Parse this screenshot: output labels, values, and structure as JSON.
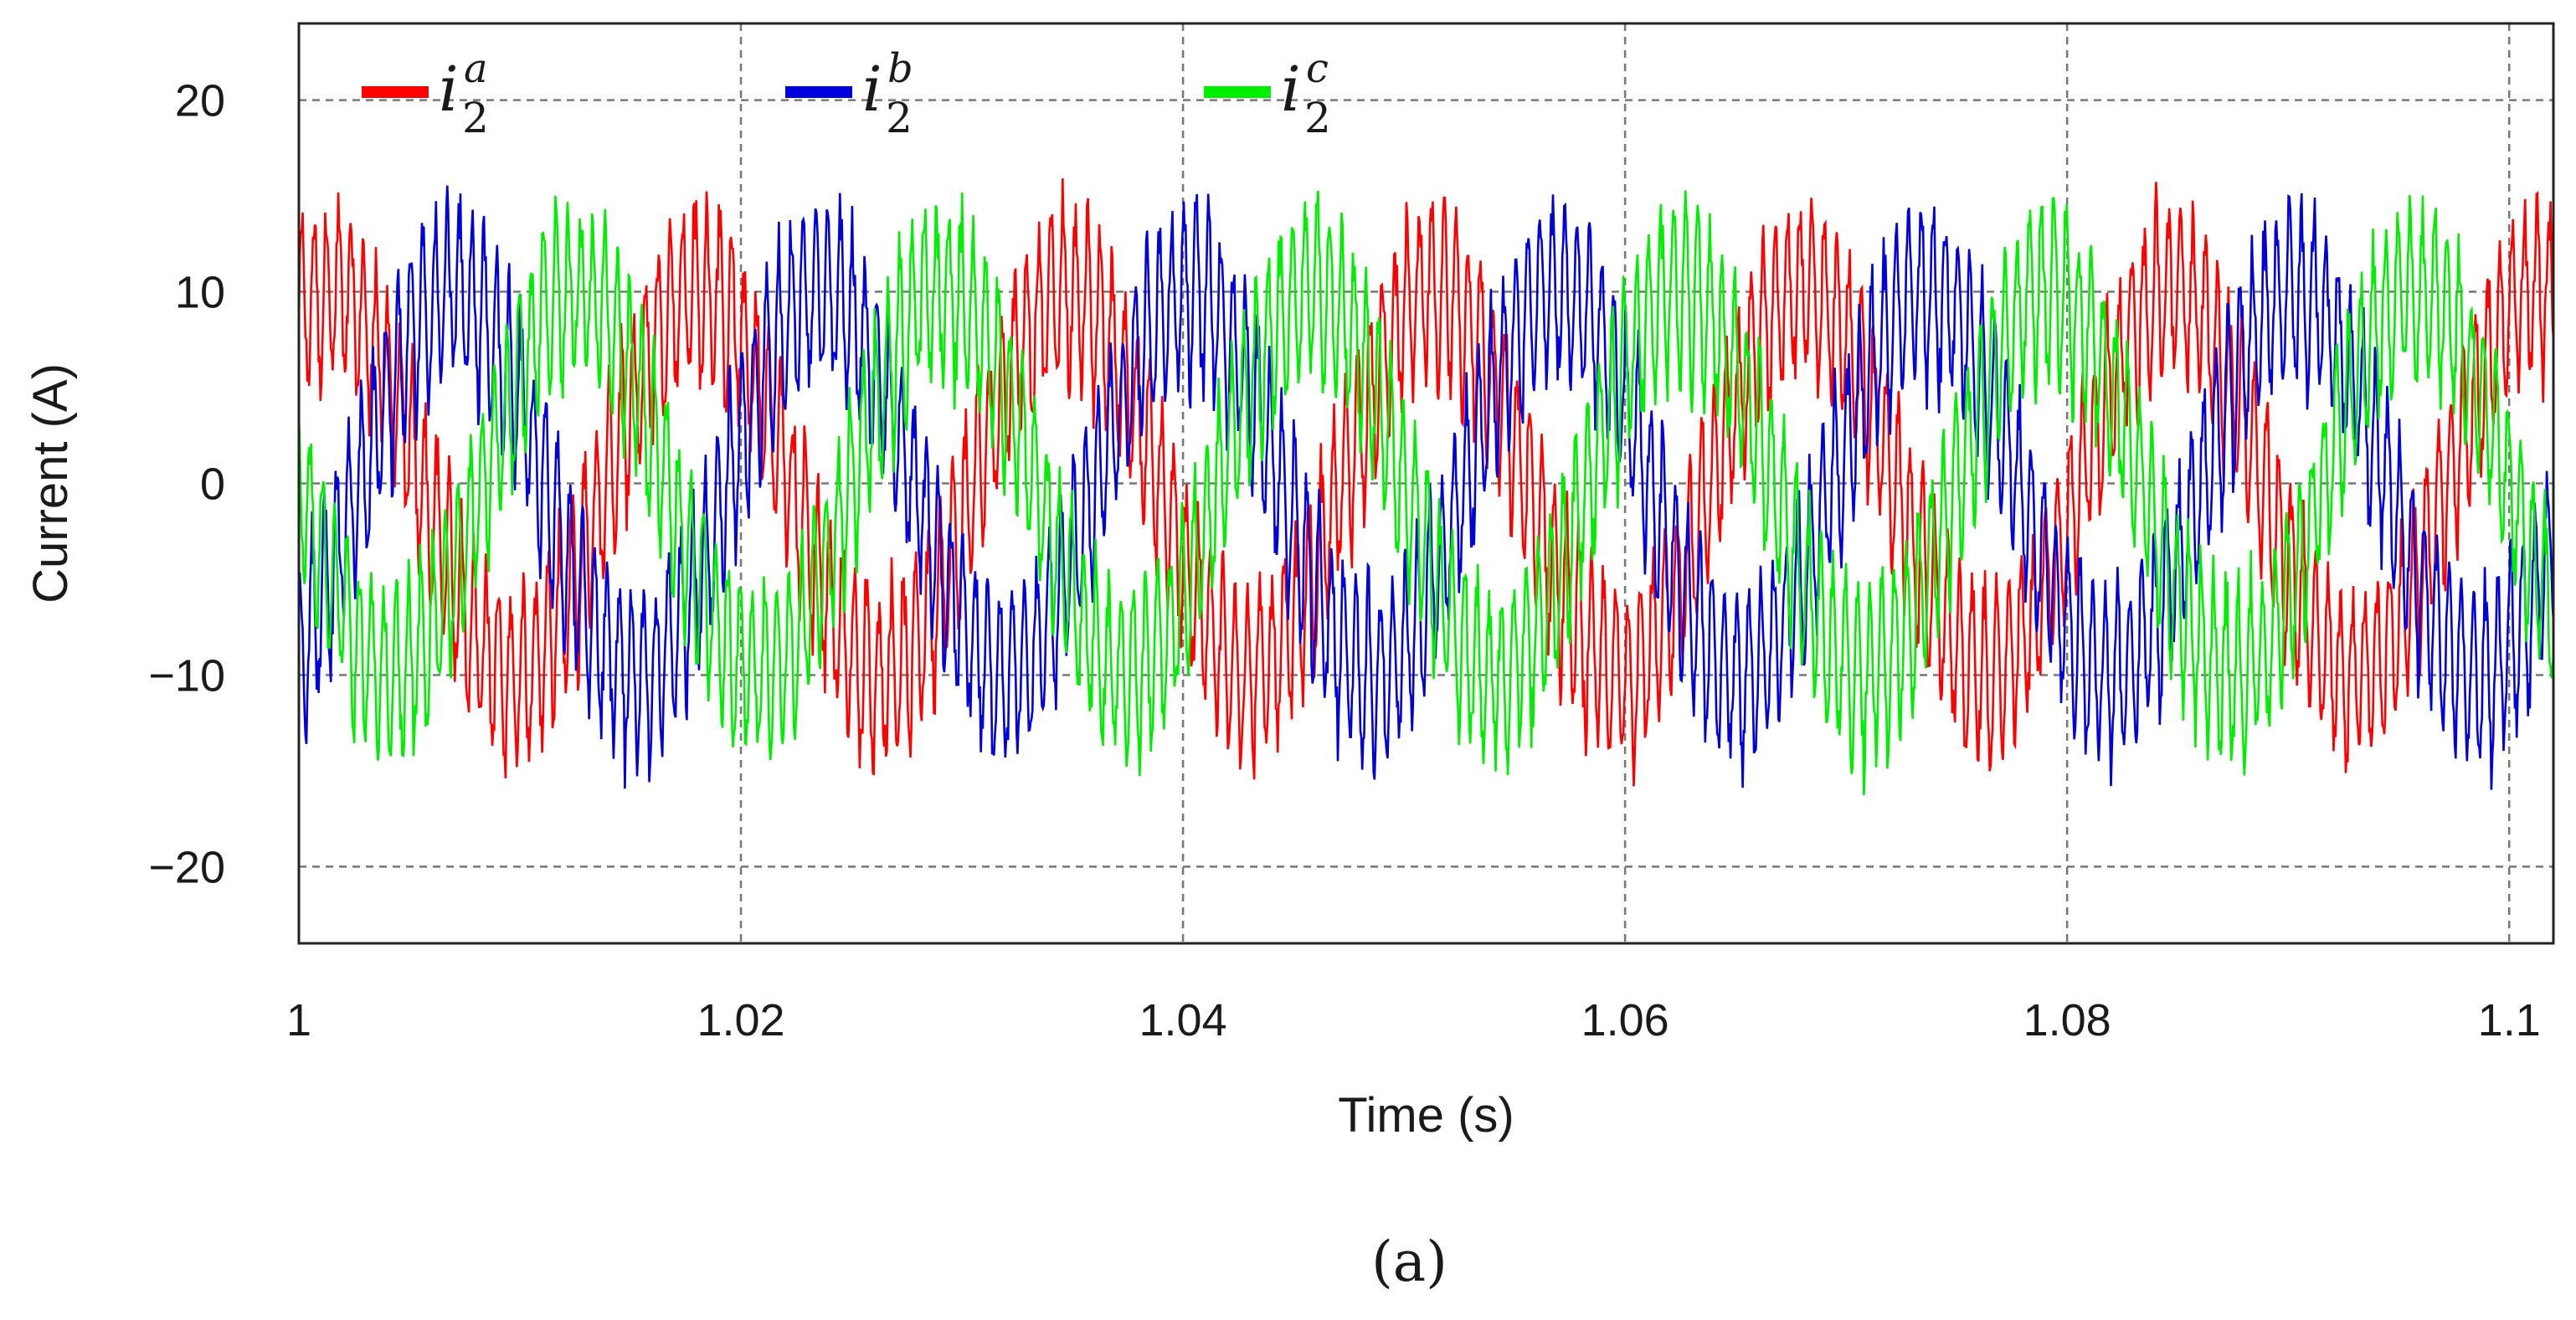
{
  "chart_data": {
    "type": "line",
    "title": "",
    "xlabel": "Time (s)",
    "ylabel": "Current (A)",
    "xlim": [
      1.0,
      1.102
    ],
    "ylim": [
      -24,
      24
    ],
    "xticks": [
      1.0,
      1.02,
      1.04,
      1.06,
      1.08,
      1.1
    ],
    "xtick_labels": [
      "1",
      "1.02",
      "1.04",
      "1.06",
      "1.08",
      "1.1"
    ],
    "yticks": [
      20,
      10,
      0,
      -10,
      -20
    ],
    "ytick_labels": [
      "20",
      "10",
      "0",
      "−10",
      "−20"
    ],
    "grid": true,
    "legend_position": "top-left",
    "fundamental_hz": 60,
    "series": [
      {
        "name": "i2a",
        "symbol": "i",
        "subscript": "2",
        "superscript": "a",
        "color": "#ff0000",
        "amplitude": 10,
        "phase_deg": 60,
        "ripple": 4.5
      },
      {
        "name": "i2b",
        "symbol": "i",
        "subscript": "2",
        "superscript": "b",
        "color": "#0000dd",
        "amplitude": 10,
        "phase_deg": -60,
        "ripple": 4.5
      },
      {
        "name": "i2c",
        "symbol": "i",
        "subscript": "2",
        "superscript": "c",
        "color": "#00ee00",
        "amplitude": 10,
        "phase_deg": 180,
        "ripple": 4.5
      }
    ],
    "caption": "(a)"
  }
}
